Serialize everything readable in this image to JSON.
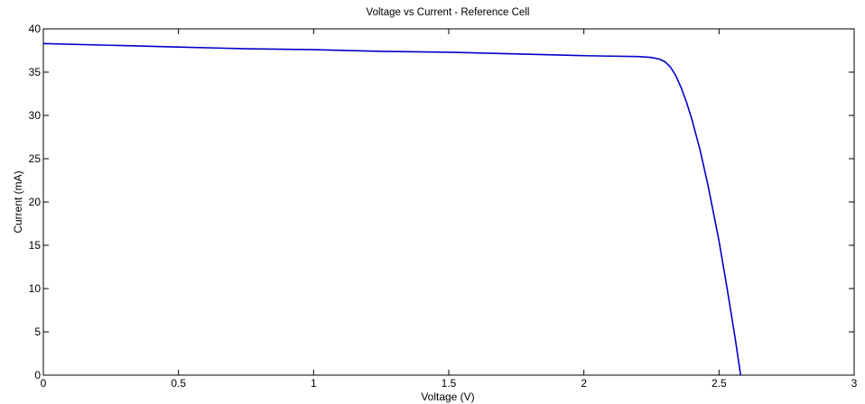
{
  "chart_data": {
    "type": "line",
    "title": "Voltage vs Current - Reference Cell",
    "xlabel": "Voltage (V)",
    "ylabel": "Current (mA)",
    "xlim": [
      0,
      3
    ],
    "ylim": [
      0,
      40
    ],
    "xticks": [
      0,
      0.5,
      1,
      1.5,
      2,
      2.5,
      3
    ],
    "xtick_labels": [
      "0",
      "0.5",
      "1",
      "1.5",
      "2",
      "2.5",
      "3"
    ],
    "yticks": [
      0,
      5,
      10,
      15,
      20,
      25,
      30,
      35,
      40
    ],
    "ytick_labels": [
      "0",
      "5",
      "10",
      "15",
      "20",
      "25",
      "30",
      "35",
      "40"
    ],
    "grid": false,
    "legend": false,
    "series": [
      {
        "color": "#0000cc",
        "x": [
          0,
          0.25,
          0.5,
          0.75,
          1.0,
          1.25,
          1.5,
          1.75,
          2.0,
          2.1,
          2.2,
          2.25,
          2.28,
          2.3,
          2.32,
          2.34,
          2.36,
          2.38,
          2.4,
          2.43,
          2.46,
          2.5,
          2.53,
          2.56,
          2.58
        ],
        "y": [
          38.3,
          38.1,
          37.9,
          37.7,
          37.6,
          37.4,
          37.3,
          37.1,
          36.9,
          36.85,
          36.8,
          36.7,
          36.5,
          36.2,
          35.6,
          34.6,
          33.2,
          31.5,
          29.5,
          26.0,
          21.8,
          15.5,
          10.0,
          4.2,
          0
        ]
      }
    ]
  }
}
